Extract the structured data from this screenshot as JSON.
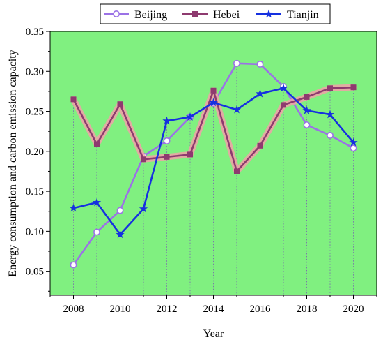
{
  "chart_data": {
    "type": "line",
    "xlabel": "Year",
    "ylabel": "Energy consumption and carbon emission capacity",
    "x": [
      2008,
      2009,
      2010,
      2011,
      2012,
      2013,
      2014,
      2015,
      2016,
      2017,
      2018,
      2019,
      2020
    ],
    "xlim": [
      2007,
      2021
    ],
    "xticks": [
      2008,
      2010,
      2012,
      2014,
      2016,
      2018,
      2020
    ],
    "ylim": [
      0.02,
      0.35
    ],
    "yticks": [
      0.05,
      0.1,
      0.15,
      0.2,
      0.25,
      0.3,
      0.35
    ],
    "ytick_labels": [
      "0.05",
      "0.10",
      "0.15",
      "0.20",
      "0.25",
      "0.30",
      "0.35"
    ],
    "plot_background": "#80f080",
    "legend_position": "top",
    "series": [
      {
        "name": "Beijing",
        "color": "#9b72e6",
        "marker": "circle",
        "values": [
          0.058,
          0.099,
          0.126,
          0.194,
          0.213,
          0.243,
          0.26,
          0.31,
          0.309,
          0.281,
          0.233,
          0.22,
          0.204
        ]
      },
      {
        "name": "Hebei",
        "color": "#8e3a6f",
        "marker": "square",
        "values": [
          0.265,
          0.209,
          0.259,
          0.19,
          0.193,
          0.196,
          0.276,
          0.175,
          0.207,
          0.258,
          0.268,
          0.279,
          0.28
        ]
      },
      {
        "name": "Tianjin",
        "color": "#1530e0",
        "marker": "star",
        "values": [
          0.129,
          0.136,
          0.096,
          0.128,
          0.238,
          0.243,
          0.261,
          0.252,
          0.272,
          0.279,
          0.251,
          0.246,
          0.211
        ]
      }
    ]
  }
}
